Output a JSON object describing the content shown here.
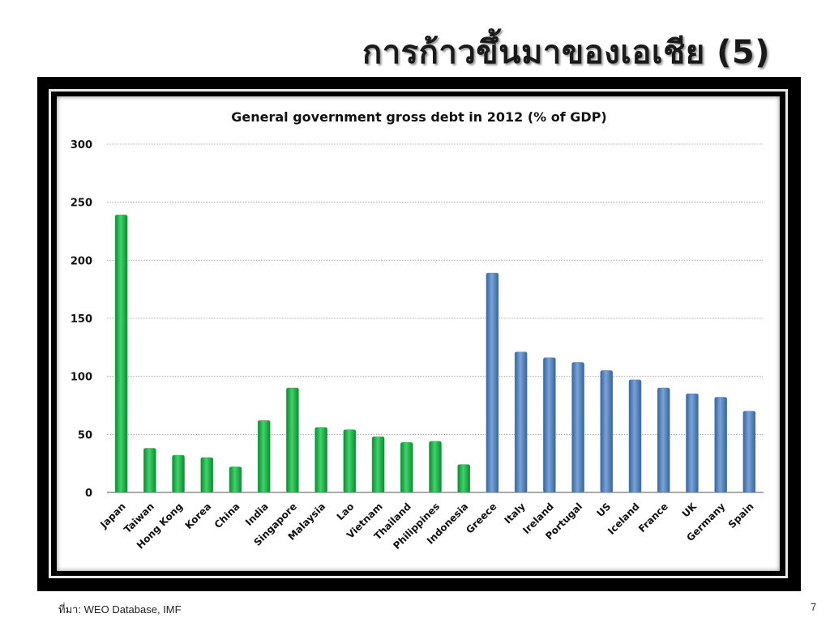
{
  "slide": {
    "title": "การก้าวขึ้นมาของเอเชีย (5)",
    "source": "ที่มา: WEO Database, IMF",
    "page_number": "7"
  },
  "colors": {
    "asia": "#1fb24a",
    "other": "#4f81bd",
    "frame": "#000000"
  },
  "chart_data": {
    "type": "bar",
    "title": "General government gross debt in 2012 (% of GDP)",
    "xlabel": "",
    "ylabel": "",
    "ylim": [
      0,
      300
    ],
    "yticks": [
      0,
      50,
      100,
      150,
      200,
      250,
      300
    ],
    "grid": true,
    "categories": [
      "Japan",
      "Taiwan",
      "Hong Kong",
      "Korea",
      "China",
      "India",
      "Singapore",
      "Malaysia",
      "Lao",
      "Vietnam",
      "Thailand",
      "Philippines",
      "Indonesia",
      "Greece",
      "Italy",
      "Ireland",
      "Portugal",
      "US",
      "Iceland",
      "France",
      "UK",
      "Germany",
      "Spain"
    ],
    "values": [
      239,
      38,
      32,
      30,
      22,
      62,
      90,
      56,
      54,
      48,
      43,
      44,
      24,
      189,
      121,
      116,
      112,
      105,
      97,
      90,
      85,
      82,
      70
    ],
    "groups": [
      "asia",
      "asia",
      "asia",
      "asia",
      "asia",
      "asia",
      "asia",
      "asia",
      "asia",
      "asia",
      "asia",
      "asia",
      "asia",
      "other",
      "other",
      "other",
      "other",
      "other",
      "other",
      "other",
      "other",
      "other",
      "other"
    ]
  }
}
